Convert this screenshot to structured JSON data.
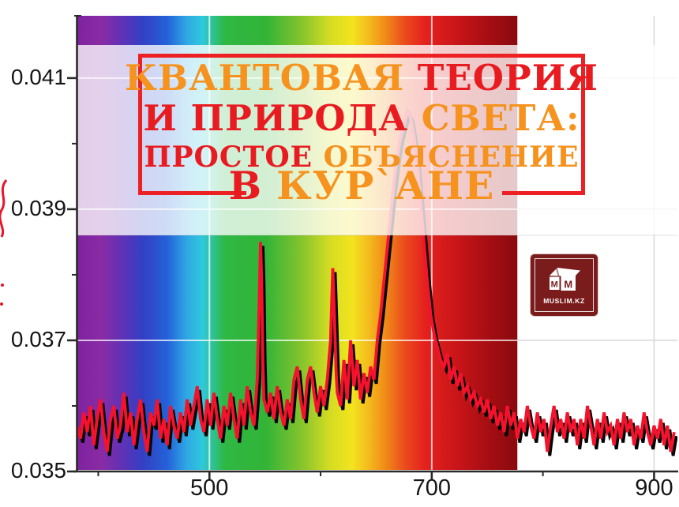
{
  "page": {
    "background": "#ffffff"
  },
  "title_overlay": {
    "frame_color": "#ED2024",
    "text_colors": {
      "orange": "#F6921E",
      "red": "#E81B20"
    },
    "lines": [
      {
        "spans": [
          {
            "text": "КВАНТОВАЯ ",
            "color": "#F6921E"
          },
          {
            "text": "ТЕОРИЯ",
            "color": "#E81B20"
          }
        ]
      },
      {
        "spans": [
          {
            "text": "И ПРИРОДА ",
            "color": "#E81B20"
          },
          {
            "text": "СВЕТА:",
            "color": "#F6921E"
          }
        ]
      },
      {
        "spans": [
          {
            "text": "ПРОСТОЕ ",
            "color": "#E81B20"
          },
          {
            "text": "ОБЪЯСНЕНИЕ",
            "color": "#F6921E"
          }
        ]
      },
      {
        "spans": [
          {
            "text": "В ",
            "color": "#E81B20"
          },
          {
            "text": "КУР`АНЕ",
            "color": "#F6921E"
          }
        ]
      }
    ]
  },
  "logo": {
    "background": "#7A1C1C",
    "cube_letter_left": "M",
    "cube_letter_right": "M",
    "caption": "MUSLIM.KZ",
    "icon": "kaaba-cube-icon"
  },
  "chart_data": {
    "type": "line",
    "title": "",
    "xlabel": "",
    "ylabel": "",
    "grid": true,
    "x_axis": {
      "min": 380.5,
      "max": 921,
      "major_ticks": [
        {
          "value": 500,
          "label": "500"
        },
        {
          "value": 700,
          "label": "700"
        },
        {
          "value": 900,
          "label": "900"
        }
      ],
      "minor_ticks": [
        400,
        600,
        800
      ]
    },
    "y_axis": {
      "min": 0.035,
      "max": 0.04195,
      "major_ticks": [
        {
          "value": 0.041,
          "label": "0.041"
        },
        {
          "value": 0.039,
          "label": "0.039"
        },
        {
          "value": 0.037,
          "label": "0.037"
        },
        {
          "value": 0.035,
          "label": "0.035"
        }
      ],
      "minor_ticks": [
        0.04,
        0.038,
        0.036
      ]
    },
    "gridline_color_on_spectrum": "rgba(255,255,255,0.72)",
    "gridline_color_on_white": "#d9d9d9",
    "axis_color": "#2a2a2a",
    "overlay_band": {
      "y_from_value": 0.0386,
      "y_to_value": 0.0415,
      "fill": "#ffffff",
      "opacity": 0.78
    },
    "spectrum_band": {
      "nm_start": 380.5,
      "nm_end": 777,
      "gradient": [
        {
          "pos": 0.0,
          "color": "#7E22A0"
        },
        {
          "pos": 0.055,
          "color": "#8A2BA4"
        },
        {
          "pos": 0.11,
          "color": "#5A33B8"
        },
        {
          "pos": 0.15,
          "color": "#3340C4"
        },
        {
          "pos": 0.205,
          "color": "#2460D8"
        },
        {
          "pos": 0.25,
          "color": "#2FA8E4"
        },
        {
          "pos": 0.285,
          "color": "#2FC8DC"
        },
        {
          "pos": 0.31,
          "color": "#2FC291"
        },
        {
          "pos": 0.335,
          "color": "#2EB844"
        },
        {
          "pos": 0.43,
          "color": "#33B437"
        },
        {
          "pos": 0.51,
          "color": "#84C42C"
        },
        {
          "pos": 0.575,
          "color": "#D5DC22"
        },
        {
          "pos": 0.625,
          "color": "#F2E41E"
        },
        {
          "pos": 0.665,
          "color": "#F4B81C"
        },
        {
          "pos": 0.705,
          "color": "#F08418"
        },
        {
          "pos": 0.745,
          "color": "#EA4A1C"
        },
        {
          "pos": 0.79,
          "color": "#E5211E"
        },
        {
          "pos": 0.87,
          "color": "#C61418"
        },
        {
          "pos": 0.94,
          "color": "#A30D12"
        },
        {
          "pos": 1.0,
          "color": "#8A0A0E"
        }
      ]
    },
    "series": [
      {
        "name": "lamp-spectrum-intensity",
        "color": "#F5122D",
        "shadow_color": "#050505",
        "value_scale": 0.0001,
        "peaks_nm": [
          546,
          611,
          678
        ],
        "points": [
          [
            381,
            357
          ],
          [
            384,
            355
          ],
          [
            387,
            359
          ],
          [
            390,
            356
          ],
          [
            393,
            360
          ],
          [
            396,
            354
          ],
          [
            399,
            358
          ],
          [
            402,
            361
          ],
          [
            405,
            356
          ],
          [
            408,
            353
          ],
          [
            411,
            358
          ],
          [
            414,
            360
          ],
          [
            417,
            355
          ],
          [
            420,
            357
          ],
          [
            423,
            362
          ],
          [
            426,
            356
          ],
          [
            429,
            359
          ],
          [
            432,
            354
          ],
          [
            435,
            358
          ],
          [
            438,
            361
          ],
          [
            441,
            356
          ],
          [
            444,
            353
          ],
          [
            447,
            359
          ],
          [
            450,
            357
          ],
          [
            453,
            361
          ],
          [
            456,
            355
          ],
          [
            459,
            358
          ],
          [
            462,
            354
          ],
          [
            465,
            360
          ],
          [
            468,
            357
          ],
          [
            471,
            355
          ],
          [
            474,
            359
          ],
          [
            477,
            356
          ],
          [
            480,
            361
          ],
          [
            483,
            357
          ],
          [
            486,
            360
          ],
          [
            489,
            363
          ],
          [
            492,
            358
          ],
          [
            495,
            356
          ],
          [
            498,
            361
          ],
          [
            501,
            357
          ],
          [
            504,
            362
          ],
          [
            507,
            358
          ],
          [
            510,
            355
          ],
          [
            513,
            360
          ],
          [
            516,
            357
          ],
          [
            519,
            362
          ],
          [
            522,
            358
          ],
          [
            525,
            355
          ],
          [
            528,
            361
          ],
          [
            531,
            357
          ],
          [
            534,
            363
          ],
          [
            537,
            359
          ],
          [
            540,
            357
          ],
          [
            543,
            364
          ],
          [
            545,
            377
          ],
          [
            546,
            385
          ],
          [
            547,
            379
          ],
          [
            548,
            367
          ],
          [
            549,
            361
          ],
          [
            552,
            359
          ],
          [
            555,
            362
          ],
          [
            558,
            358
          ],
          [
            561,
            363
          ],
          [
            564,
            359
          ],
          [
            567,
            357
          ],
          [
            570,
            361
          ],
          [
            573,
            358
          ],
          [
            576,
            364
          ],
          [
            579,
            366
          ],
          [
            582,
            361
          ],
          [
            585,
            358
          ],
          [
            588,
            364
          ],
          [
            591,
            366
          ],
          [
            594,
            362
          ],
          [
            597,
            359
          ],
          [
            600,
            363
          ],
          [
            603,
            360
          ],
          [
            606,
            364
          ],
          [
            609,
            370
          ],
          [
            611,
            381
          ],
          [
            612,
            376
          ],
          [
            614,
            365
          ],
          [
            615,
            362
          ],
          [
            618,
            360
          ],
          [
            621,
            367
          ],
          [
            624,
            361
          ],
          [
            627,
            370
          ],
          [
            630,
            363
          ],
          [
            633,
            367
          ],
          [
            636,
            361
          ],
          [
            639,
            365
          ],
          [
            642,
            362
          ],
          [
            645,
            366
          ],
          [
            648,
            364
          ],
          [
            651,
            370
          ],
          [
            654,
            374
          ],
          [
            657,
            379
          ],
          [
            660,
            384
          ],
          [
            663,
            389
          ],
          [
            666,
            394
          ],
          [
            669,
            398
          ],
          [
            672,
            401
          ],
          [
            675,
            403
          ],
          [
            678,
            405
          ],
          [
            681,
            404
          ],
          [
            684,
            401
          ],
          [
            687,
            397
          ],
          [
            690,
            391
          ],
          [
            693,
            385
          ],
          [
            696,
            379
          ],
          [
            699,
            374
          ],
          [
            702,
            371
          ],
          [
            705,
            369
          ],
          [
            708,
            367
          ],
          [
            711,
            366
          ],
          [
            714,
            368
          ],
          [
            717,
            364
          ],
          [
            720,
            366
          ],
          [
            723,
            363
          ],
          [
            726,
            365
          ],
          [
            729,
            362
          ],
          [
            732,
            363
          ],
          [
            735,
            361
          ],
          [
            738,
            362
          ],
          [
            741,
            360
          ],
          [
            744,
            361
          ],
          [
            747,
            359
          ],
          [
            750,
            361
          ],
          [
            753,
            358
          ],
          [
            756,
            360
          ],
          [
            759,
            357
          ],
          [
            762,
            359
          ],
          [
            765,
            356
          ],
          [
            768,
            360
          ],
          [
            771,
            357
          ],
          [
            774,
            359
          ],
          [
            777,
            355
          ],
          [
            780,
            358
          ],
          [
            783,
            356
          ],
          [
            786,
            360
          ],
          [
            789,
            357
          ],
          [
            792,
            355
          ],
          [
            795,
            359
          ],
          [
            798,
            356
          ],
          [
            801,
            358
          ],
          [
            804,
            353
          ],
          [
            807,
            357
          ],
          [
            810,
            360
          ],
          [
            813,
            356
          ],
          [
            816,
            358
          ],
          [
            819,
            355
          ],
          [
            822,
            359
          ],
          [
            825,
            356
          ],
          [
            828,
            358
          ],
          [
            831,
            354
          ],
          [
            834,
            358
          ],
          [
            837,
            355
          ],
          [
            840,
            360
          ],
          [
            843,
            357
          ],
          [
            846,
            354
          ],
          [
            849,
            358
          ],
          [
            852,
            355
          ],
          [
            855,
            359
          ],
          [
            858,
            356
          ],
          [
            861,
            357
          ],
          [
            864,
            354
          ],
          [
            867,
            358
          ],
          [
            870,
            355
          ],
          [
            873,
            359
          ],
          [
            876,
            356
          ],
          [
            879,
            358
          ],
          [
            882,
            354
          ],
          [
            885,
            357
          ],
          [
            888,
            355
          ],
          [
            891,
            359
          ],
          [
            894,
            356
          ],
          [
            897,
            354
          ],
          [
            900,
            357
          ],
          [
            903,
            355
          ],
          [
            906,
            358
          ],
          [
            909,
            354
          ],
          [
            912,
            357
          ],
          [
            915,
            353
          ],
          [
            918,
            356
          ]
        ]
      }
    ],
    "edge_fragment_color": "#E8152B"
  }
}
